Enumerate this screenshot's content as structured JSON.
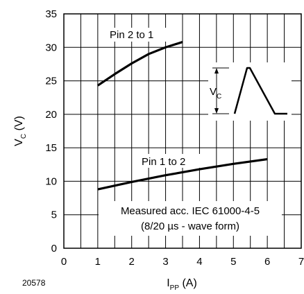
{
  "figure_id": "20578",
  "chart_data": {
    "type": "line",
    "x_axis": {
      "label_main": "I",
      "label_sub": "PP",
      "label_unit": " (A)",
      "range": [
        0,
        7
      ],
      "ticks": [
        0,
        1,
        2,
        3,
        4,
        5,
        6,
        7
      ]
    },
    "y_axis": {
      "label_main": "V",
      "label_sub": "C",
      "label_unit": " (V)",
      "range": [
        0,
        35
      ],
      "ticks": [
        0,
        5,
        10,
        15,
        20,
        25,
        30,
        35
      ]
    },
    "grid": true,
    "series": [
      {
        "name": "Pin 2 to 1",
        "x": [
          1,
          1.5,
          2,
          2.5,
          3,
          3.5
        ],
        "y": [
          24.3,
          26,
          27.6,
          29,
          30,
          30.8
        ]
      },
      {
        "name": "Pin 1 to 2",
        "x": [
          1,
          2,
          3,
          4,
          5,
          6
        ],
        "y": [
          8.8,
          9.9,
          10.9,
          11.8,
          12.6,
          13.3
        ]
      }
    ],
    "annotations": {
      "note_line1": "Measured acc. IEC 61000-4-5",
      "note_line2": "(8/20 µs - wave form)",
      "inset_label_main": "V",
      "inset_label_sub": "C"
    }
  }
}
